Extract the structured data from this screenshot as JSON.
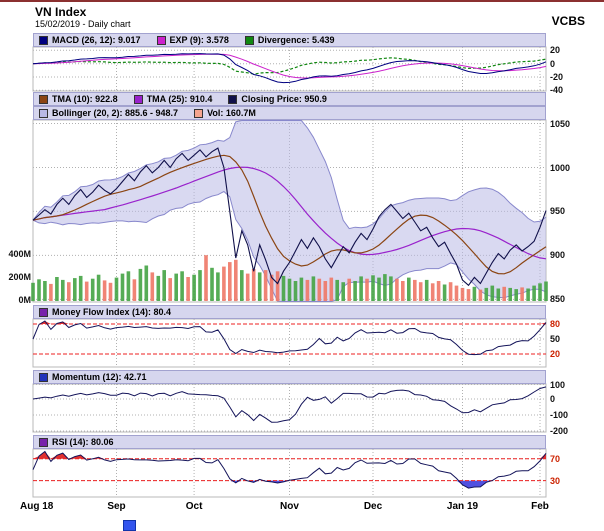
{
  "header": {
    "title": "VN Index",
    "subtitle": "15/02/2019 - Daily chart",
    "brand": "VCBS"
  },
  "colors": {
    "close_line": "#10104a",
    "tma10": "#8b4513",
    "tma25": "#9922cc",
    "band_fill": "#b9b9e6",
    "band_edge": "#8888cc",
    "vol_up": "#44a344",
    "vol_down": "#ee7766",
    "oscillator_line": "#14145a",
    "threshold": "#ee2222",
    "overbought_fill": "#e03030",
    "oversold_fill": "#5050e0",
    "macd": "#000080",
    "exp": "#cc22cc",
    "divergence": "#118811",
    "grid": "#b0b0b0"
  },
  "panels": {
    "macd": {
      "legend": [
        {
          "color": "#000080",
          "label": "MACD (26, 12): 9.017"
        },
        {
          "color": "#cc22cc",
          "label": "EXP (9): 3.578"
        },
        {
          "color": "#118811",
          "label": "Divergence: 5.439"
        }
      ],
      "yticks": [
        {
          "t": "20",
          "v": 20
        },
        {
          "t": "0",
          "v": 0
        },
        {
          "t": "-20",
          "v": -20
        },
        {
          "t": "-40",
          "v": -40
        }
      ]
    },
    "price": {
      "legend1": [
        {
          "color": "#8b4513",
          "label": "TMA (10): 922.8"
        },
        {
          "color": "#9922cc",
          "label": "TMA (25): 910.4"
        },
        {
          "color": "#10104a",
          "label": "Closing Price: 950.9"
        }
      ],
      "legend2": [
        {
          "color": "#b9b9e6",
          "label": "Bollinger (20, 2): 885.6 - 948.7"
        },
        {
          "color": "#f5a58f",
          "label": "Vol: 160.7M"
        }
      ],
      "yticks": [
        {
          "t": "1050",
          "v": 1050
        },
        {
          "t": "1000",
          "v": 1000
        },
        {
          "t": "950",
          "v": 950
        },
        {
          "t": "900",
          "v": 900
        },
        {
          "t": "850",
          "v": 850
        }
      ],
      "vol_yticks": [
        {
          "t": "400M",
          "v": 400
        },
        {
          "t": "200M",
          "v": 200
        },
        {
          "t": "0M",
          "v": 0
        }
      ]
    },
    "mfi": {
      "legend": [
        {
          "color": "#7722aa",
          "label": "Money Flow Index (14): 80.4"
        }
      ],
      "yticks": [
        {
          "t": "80",
          "v": 80,
          "red": true
        },
        {
          "t": "50",
          "v": 50
        },
        {
          "t": "20",
          "v": 20,
          "red": true
        }
      ],
      "thresholds": [
        80,
        20
      ]
    },
    "momentum": {
      "legend": [
        {
          "color": "#2233bb",
          "label": "Momentum (12): 42.71"
        }
      ],
      "yticks": [
        {
          "t": "100",
          "v": 100
        },
        {
          "t": "0",
          "v": 0
        },
        {
          "t": "-100",
          "v": -100
        },
        {
          "t": "-200",
          "v": -200
        }
      ]
    },
    "rsi": {
      "legend": [
        {
          "color": "#7722aa",
          "label": "RSI (14): 80.06"
        }
      ],
      "yticks": [
        {
          "t": "70",
          "v": 70,
          "red": true
        },
        {
          "t": "30",
          "v": 30,
          "red": true
        }
      ],
      "thresholds": [
        70,
        30
      ]
    }
  },
  "chart_data": {
    "type": "line",
    "title": "VN Index",
    "subtitle": "15/02/2019 - Daily chart",
    "x_ticks": [
      {
        "label": "Aug 18",
        "i": 0
      },
      {
        "label": "Sep",
        "i": 14
      },
      {
        "label": "Oct",
        "i": 27
      },
      {
        "label": "Nov",
        "i": 43
      },
      {
        "label": "Dec",
        "i": 57
      },
      {
        "label": "Jan 19",
        "i": 72
      },
      {
        "label": "Feb",
        "i": 85
      }
    ],
    "price_axis": {
      "range": [
        850,
        1050
      ],
      "ticks": [
        850,
        900,
        950,
        1000,
        1050
      ]
    },
    "volume_axis_m": {
      "range": [
        0,
        400
      ],
      "ticks": [
        0,
        200,
        400
      ]
    },
    "close": [
      940,
      946,
      952,
      947,
      958,
      965,
      958,
      968,
      975,
      966,
      972,
      980,
      974,
      970,
      976,
      984,
      992,
      985,
      995,
      1002,
      994,
      1000,
      1008,
      1000,
      1010,
      1016,
      1008,
      1014,
      1020,
      1012,
      1018,
      1022,
      1000,
      950,
      897,
      928,
      912,
      882,
      912,
      895,
      875,
      868,
      882,
      892,
      905,
      918,
      908,
      920,
      910,
      896,
      886,
      898,
      910,
      903,
      915,
      925,
      918,
      930,
      944,
      952,
      958,
      950,
      942,
      948,
      938,
      928,
      932,
      920,
      910,
      915,
      902,
      890,
      872,
      866,
      875,
      868,
      880,
      892,
      902,
      896,
      906,
      912,
      905,
      910,
      916,
      932,
      950.9
    ],
    "volume_m": [
      150,
      180,
      165,
      140,
      200,
      175,
      155,
      190,
      210,
      160,
      185,
      220,
      170,
      150,
      195,
      230,
      250,
      180,
      270,
      300,
      240,
      210,
      260,
      190,
      230,
      250,
      200,
      220,
      260,
      390,
      280,
      240,
      290,
      330,
      350,
      260,
      230,
      270,
      240,
      260,
      220,
      250,
      210,
      185,
      165,
      195,
      175,
      205,
      185,
      165,
      195,
      175,
      155,
      185,
      165,
      205,
      185,
      215,
      195,
      225,
      205,
      185,
      165,
      195,
      175,
      155,
      175,
      145,
      165,
      135,
      155,
      125,
      105,
      95,
      115,
      90,
      105,
      125,
      100,
      115,
      105,
      95,
      110,
      100,
      125,
      145,
      160.7
    ],
    "indicators": {
      "macd": {
        "slow": 26,
        "fast": 12,
        "current": 9.017
      },
      "exp": {
        "period": 9,
        "current": 3.578
      },
      "divergence_current": 5.439,
      "tma10_current": 922.8,
      "tma25_current": 910.4,
      "closing_price_current": 950.9,
      "bollinger": {
        "period": 20,
        "stdev": 2,
        "lower": 885.6,
        "upper": 948.7
      },
      "volume_current": "160.7M",
      "money_flow_index": {
        "period": 14,
        "current": 80.4
      },
      "momentum": {
        "period": 12,
        "current": 42.71
      },
      "rsi": {
        "period": 14,
        "current": 80.06
      }
    }
  }
}
